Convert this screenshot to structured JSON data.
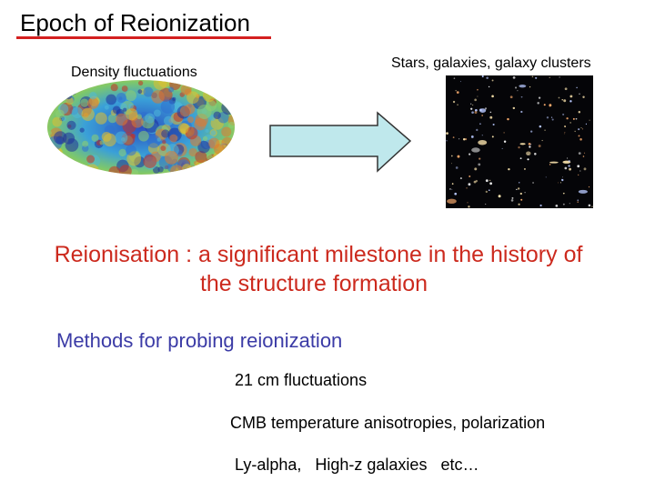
{
  "slide": {
    "title": "Epoch of Reionization",
    "left_label": "Density fluctuations",
    "right_label": "Stars, galaxies, galaxy clusters",
    "headline": [
      "Reionisation : a significant milestone in the history of",
      "the structure formation"
    ],
    "methods_heading": "Methods for probing reionization",
    "methods": [
      "21 cm fluctuations",
      "CMB temperature anisotropies, polarization",
      "Ly-alpha,   High-z galaxies   etc…"
    ]
  }
}
